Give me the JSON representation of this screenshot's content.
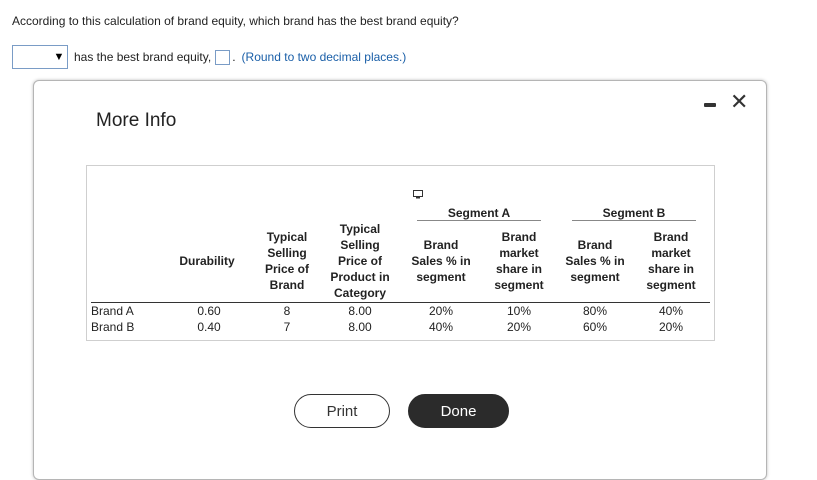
{
  "question": "According to this calculation of brand equity, which brand has the best brand equity?",
  "answer": {
    "dropdown_value": "",
    "text": "has the best brand equity,",
    "number_value": "",
    "period": ".",
    "hint": "(Round to two decimal places.)"
  },
  "modal": {
    "title": "More Info",
    "minimize_label": "-",
    "close_label": "✕",
    "table": {
      "segment_a": "Segment A",
      "segment_b": "Segment B",
      "headers": {
        "durability": "Durability",
        "typical_selling_price_brand": [
          "Typical",
          "Selling",
          "Price of",
          "Brand"
        ],
        "typical_selling_price_category": [
          "Typical",
          "Selling",
          "Price of",
          "Product in",
          "Category"
        ],
        "a_sales": [
          "Brand",
          "Sales % in",
          "segment"
        ],
        "a_share": [
          "Brand",
          "market",
          "share in",
          "segment"
        ],
        "b_sales": [
          "Brand",
          "Sales % in",
          "segment"
        ],
        "b_share": [
          "Brand",
          "market",
          "share in",
          "segment"
        ]
      },
      "rows": [
        {
          "label": "Brand A",
          "durability": "0.60",
          "brand_price": "8",
          "category_price": "8.00",
          "a_sales": "20%",
          "a_share": "10%",
          "b_sales": "80%",
          "b_share": "40%"
        },
        {
          "label": "Brand B",
          "durability": "0.40",
          "brand_price": "7",
          "category_price": "8.00",
          "a_sales": "40%",
          "a_share": "20%",
          "b_sales": "60%",
          "b_share": "20%"
        }
      ]
    },
    "buttons": {
      "print": "Print",
      "done": "Done"
    }
  }
}
